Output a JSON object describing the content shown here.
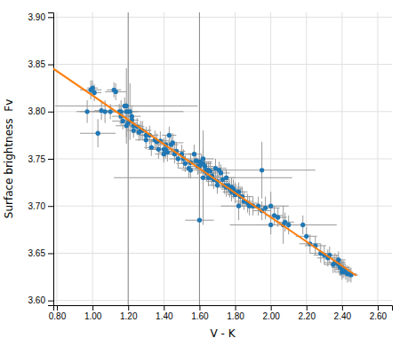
{
  "chart_data": {
    "type": "scatter",
    "xlabel": "V - K",
    "ylabel": "Surface brightness  Fv",
    "xlim": [
      0.78,
      2.68
    ],
    "ylim": [
      3.595,
      3.905
    ],
    "xticks": [
      {
        "value": 0.8,
        "label": "0.80"
      },
      {
        "value": 1.0,
        "label": "1.00"
      },
      {
        "value": 1.2,
        "label": "1.20"
      },
      {
        "value": 1.4,
        "label": "1.40"
      },
      {
        "value": 1.6,
        "label": "1.60"
      },
      {
        "value": 1.8,
        "label": "1.80"
      },
      {
        "value": 2.0,
        "label": "2.00"
      },
      {
        "value": 2.2,
        "label": "2.20"
      },
      {
        "value": 2.4,
        "label": "2.40"
      },
      {
        "value": 2.6,
        "label": "2.60"
      }
    ],
    "yticks": [
      {
        "value": 3.6,
        "label": "3.60"
      },
      3.65,
      {
        "value": 3.7,
        "label": "3.70"
      },
      3.75,
      {
        "value": 3.8,
        "label": "3.80"
      },
      3.85,
      {
        "value": 3.9,
        "label": "3.90"
      }
    ],
    "grid": true,
    "vertical_lines": [
      1.2,
      1.6
    ],
    "series": [
      {
        "type": "scatter",
        "marker": "circle",
        "x": [
          0.97,
          0.99,
          1.0,
          1.01,
          1.03,
          1.05,
          1.07,
          1.1,
          1.12,
          1.13,
          1.15,
          1.16,
          1.16,
          1.17,
          1.18,
          1.19,
          1.19,
          1.19,
          1.2,
          1.2,
          1.21,
          1.22,
          1.22,
          1.23,
          1.23,
          1.25,
          1.26,
          1.27,
          1.28,
          1.3,
          1.3,
          1.32,
          1.33,
          1.35,
          1.36,
          1.37,
          1.38,
          1.4,
          1.4,
          1.41,
          1.41,
          1.42,
          1.43,
          1.44,
          1.45,
          1.46,
          1.47,
          1.48,
          1.5,
          1.51,
          1.52,
          1.54,
          1.55,
          1.55,
          1.57,
          1.58,
          1.59,
          1.6,
          1.6,
          1.6,
          1.61,
          1.62,
          1.62,
          1.62,
          1.63,
          1.63,
          1.64,
          1.64,
          1.65,
          1.65,
          1.66,
          1.67,
          1.67,
          1.68,
          1.69,
          1.7,
          1.7,
          1.71,
          1.72,
          1.73,
          1.74,
          1.75,
          1.75,
          1.76,
          1.77,
          1.78,
          1.78,
          1.79,
          1.8,
          1.8,
          1.82,
          1.82,
          1.83,
          1.84,
          1.85,
          1.87,
          1.88,
          1.9,
          1.93,
          1.95,
          1.97,
          2.0,
          2.02,
          2.04,
          2.07,
          2.08,
          2.1,
          1.95,
          2.0,
          2.18,
          2.2,
          2.22,
          2.25,
          2.28,
          2.3,
          2.32,
          2.33,
          2.35,
          2.36,
          2.37,
          2.38,
          2.38,
          2.39,
          2.39,
          2.4,
          2.4,
          2.4,
          2.41,
          2.42,
          2.43,
          2.44,
          2.45
        ],
        "values": [
          3.8,
          3.823,
          3.825,
          3.82,
          3.777,
          3.801,
          3.8,
          3.8,
          3.823,
          3.821,
          3.8,
          3.795,
          3.8,
          3.79,
          3.806,
          3.8,
          3.785,
          3.806,
          3.8,
          3.788,
          3.8,
          3.791,
          3.795,
          3.785,
          3.78,
          3.784,
          3.778,
          3.78,
          3.78,
          3.775,
          3.77,
          3.775,
          3.762,
          3.77,
          3.768,
          3.76,
          3.769,
          3.755,
          3.76,
          3.765,
          3.76,
          3.757,
          3.775,
          3.765,
          3.767,
          3.755,
          3.758,
          3.75,
          3.755,
          3.75,
          3.745,
          3.74,
          3.746,
          3.738,
          3.755,
          3.748,
          3.742,
          3.747,
          3.742,
          3.685,
          3.745,
          3.75,
          3.745,
          3.73,
          3.742,
          3.737,
          3.735,
          3.738,
          3.73,
          3.738,
          3.737,
          3.732,
          3.73,
          3.728,
          3.74,
          3.726,
          3.722,
          3.738,
          3.735,
          3.728,
          3.722,
          3.73,
          3.72,
          3.722,
          3.718,
          3.715,
          3.72,
          3.718,
          3.715,
          3.712,
          3.7,
          3.715,
          3.71,
          3.71,
          3.705,
          3.703,
          3.7,
          3.7,
          3.7,
          3.695,
          3.698,
          3.7,
          3.69,
          3.688,
          3.68,
          3.683,
          3.68,
          3.738,
          3.68,
          3.68,
          3.668,
          3.66,
          3.658,
          3.65,
          3.648,
          3.645,
          3.648,
          3.638,
          3.64,
          3.64,
          3.638,
          3.643,
          3.635,
          3.635,
          3.633,
          3.635,
          3.63,
          3.633,
          3.63,
          3.628,
          3.628,
          3.627
        ],
        "x_errors": [
          0.04,
          0.06,
          0.03,
          0.04,
          0.1,
          0.04,
          0.05,
          0.1,
          0.04,
          0.06,
          0.07,
          0.05,
          0.08,
          0.06,
          0.05,
          0.04,
          0.06,
          0.4,
          0.06,
          0.05,
          0.3,
          0.04,
          0.05,
          0.05,
          0.04,
          0.04,
          0.04,
          0.05,
          0.05,
          0.04,
          0.06,
          0.05,
          0.04,
          0.05,
          0.04,
          0.06,
          0.05,
          0.05,
          0.07,
          0.05,
          0.05,
          0.05,
          0.04,
          0.04,
          0.06,
          0.05,
          0.05,
          0.05,
          0.06,
          0.05,
          0.05,
          0.06,
          0.05,
          0.05,
          0.04,
          0.04,
          0.04,
          0.07,
          0.05,
          0.08,
          0.05,
          0.06,
          0.05,
          0.5,
          0.05,
          0.04,
          0.05,
          0.04,
          0.05,
          0.04,
          0.05,
          0.04,
          0.04,
          0.05,
          0.06,
          0.06,
          0.05,
          0.04,
          0.05,
          0.04,
          0.04,
          0.05,
          0.05,
          0.05,
          0.05,
          0.05,
          0.06,
          0.05,
          0.05,
          0.04,
          0.1,
          0.05,
          0.04,
          0.06,
          0.05,
          0.06,
          0.05,
          0.06,
          0.07,
          0.05,
          0.08,
          0.1,
          0.05,
          0.05,
          0.3,
          0.05,
          0.05,
          0.3,
          0.06,
          0.06,
          0.06,
          0.06,
          0.06,
          0.06,
          0.06,
          0.06,
          0.05,
          0.05,
          0.06,
          0.04,
          0.04,
          0.04,
          0.04,
          0.05,
          0.04,
          0.04,
          0.04,
          0.04,
          0.04,
          0.05,
          0.04,
          0.04
        ],
        "y_errors": [
          0.012,
          0.01,
          0.008,
          0.009,
          0.015,
          0.01,
          0.012,
          0.008,
          0.008,
          0.009,
          0.008,
          0.01,
          0.012,
          0.009,
          0.009,
          0.01,
          0.012,
          0.04,
          0.008,
          0.009,
          0.03,
          0.009,
          0.01,
          0.009,
          0.008,
          0.009,
          0.009,
          0.01,
          0.01,
          0.009,
          0.01,
          0.01,
          0.009,
          0.01,
          0.009,
          0.01,
          0.01,
          0.009,
          0.012,
          0.01,
          0.01,
          0.01,
          0.009,
          0.009,
          0.01,
          0.01,
          0.01,
          0.01,
          0.01,
          0.01,
          0.009,
          0.01,
          0.01,
          0.009,
          0.01,
          0.009,
          0.009,
          0.012,
          0.01,
          0.015,
          0.01,
          0.01,
          0.01,
          0.05,
          0.009,
          0.009,
          0.009,
          0.009,
          0.009,
          0.009,
          0.01,
          0.009,
          0.009,
          0.01,
          0.01,
          0.01,
          0.009,
          0.009,
          0.009,
          0.009,
          0.009,
          0.009,
          0.01,
          0.01,
          0.009,
          0.01,
          0.01,
          0.01,
          0.01,
          0.009,
          0.015,
          0.01,
          0.009,
          0.01,
          0.009,
          0.01,
          0.01,
          0.01,
          0.01,
          0.01,
          0.012,
          0.015,
          0.01,
          0.01,
          0.02,
          0.01,
          0.01,
          0.03,
          0.01,
          0.01,
          0.01,
          0.01,
          0.01,
          0.01,
          0.01,
          0.009,
          0.009,
          0.009,
          0.01,
          0.008,
          0.008,
          0.009,
          0.009,
          0.009,
          0.009,
          0.008,
          0.008,
          0.009,
          0.008,
          0.009,
          0.008,
          0.008
        ]
      },
      {
        "type": "line",
        "line_style": "solid",
        "x": [
          0.78,
          2.48
        ],
        "values": [
          3.8454,
          3.6262
        ]
      }
    ]
  }
}
